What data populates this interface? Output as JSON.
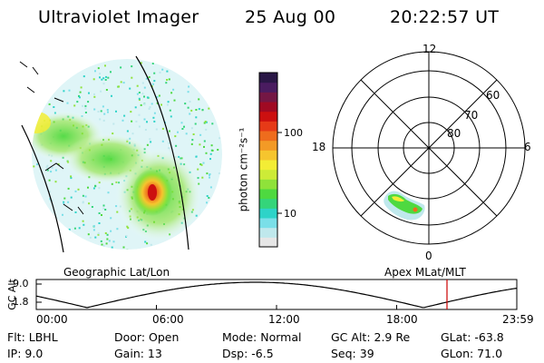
{
  "header": {
    "title": "Ultraviolet Imager",
    "date": "25 Aug 00",
    "time": "20:22:57 UT"
  },
  "colorbar": {
    "unit_label": "photon cm⁻²s⁻¹",
    "tick_100": "100",
    "tick_10": "10",
    "colors": [
      "#e6e6e6",
      "#bfe8ec",
      "#7adfe8",
      "#2ed3c8",
      "#34d57a",
      "#4ed940",
      "#8fe23a",
      "#cdeb37",
      "#f3ed35",
      "#f6c52e",
      "#f39a26",
      "#ee6c1d",
      "#e63a17",
      "#cc1010",
      "#a00a23",
      "#741744",
      "#4a1c60",
      "#2a1746"
    ]
  },
  "polar": {
    "mlt_top": "12",
    "mlt_left": "18",
    "mlt_right": "6",
    "mlt_bottom": "0",
    "lat_60": "60",
    "lat_70": "70",
    "lat_80": "80"
  },
  "panel_labels": {
    "left": "Geographic Lat/Lon",
    "right": "Apex MLat/MLT"
  },
  "altitude_plot": {
    "ylabel": "GC Alt",
    "y_top": "9.0",
    "y_bottom": "1.8",
    "x_ticks": [
      "00:00",
      "06:00",
      "12:00",
      "18:00",
      "23:59"
    ],
    "marker_color": "#cc0000",
    "line_color": "#000000"
  },
  "info": {
    "flt": "Flt: LBHL",
    "ip": "IP:  9.0",
    "door": "Door: Open",
    "gain": "Gain: 13",
    "mode": "Mode: Normal",
    "dsp": "Dsp:    -6.5",
    "gc_alt": "GC Alt: 2.9 Re",
    "seq": "Seq: 39",
    "glat": "GLat: -63.8",
    "glon": "GLon: 71.0"
  }
}
